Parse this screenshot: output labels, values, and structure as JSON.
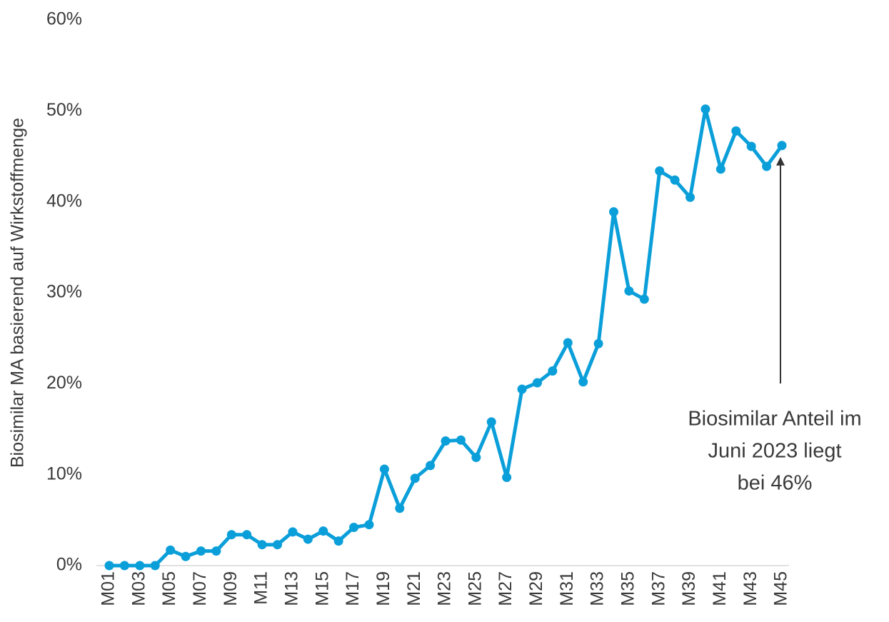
{
  "chart_data": {
    "type": "line",
    "y_label": "Biosimilar MA basierend auf Wirkstoffmenge",
    "categories": [
      "M01",
      null,
      "M03",
      null,
      "M05",
      null,
      "M07",
      null,
      "M09",
      null,
      "M11",
      null,
      "M13",
      null,
      "M15",
      null,
      "M17",
      null,
      "M19",
      null,
      "M21",
      null,
      "M23",
      null,
      "M25",
      null,
      "M27",
      null,
      "M29",
      null,
      "M31",
      null,
      "M33",
      null,
      "M35",
      null,
      "M37",
      null,
      "M39",
      null,
      "M41",
      null,
      "M43",
      null,
      "M45"
    ],
    "series": [
      {
        "name": "Biosimilar MA",
        "color": "#0b9fda",
        "values": [
          0,
          0,
          0,
          0,
          1.7,
          1.0,
          1.6,
          1.6,
          3.4,
          3.4,
          2.3,
          2.3,
          3.7,
          2.9,
          3.8,
          2.7,
          4.2,
          4.5,
          10.6,
          6.3,
          9.6,
          11.0,
          13.7,
          13.8,
          11.9,
          15.8,
          9.7,
          19.4,
          20.1,
          21.4,
          24.5,
          20.2,
          24.4,
          38.9,
          30.2,
          29.3,
          43.4,
          42.4,
          40.5,
          50.2,
          43.6,
          47.8,
          46.1,
          43.9,
          46.2
        ]
      }
    ],
    "ylim": [
      0,
      60
    ],
    "yticks": [
      {
        "value": 0,
        "label": "0%"
      },
      {
        "value": 10,
        "label": "10%"
      },
      {
        "value": 20,
        "label": "20%"
      },
      {
        "value": 30,
        "label": "30%"
      },
      {
        "value": 40,
        "label": "40%"
      },
      {
        "value": 50,
        "label": "50%"
      },
      {
        "value": 60,
        "label": "60%"
      }
    ],
    "grid": false,
    "annotation": {
      "lines": [
        "Biosimilar Anteil im",
        "Juni 2023 liegt",
        "bei 46%"
      ],
      "target": 44
    }
  }
}
